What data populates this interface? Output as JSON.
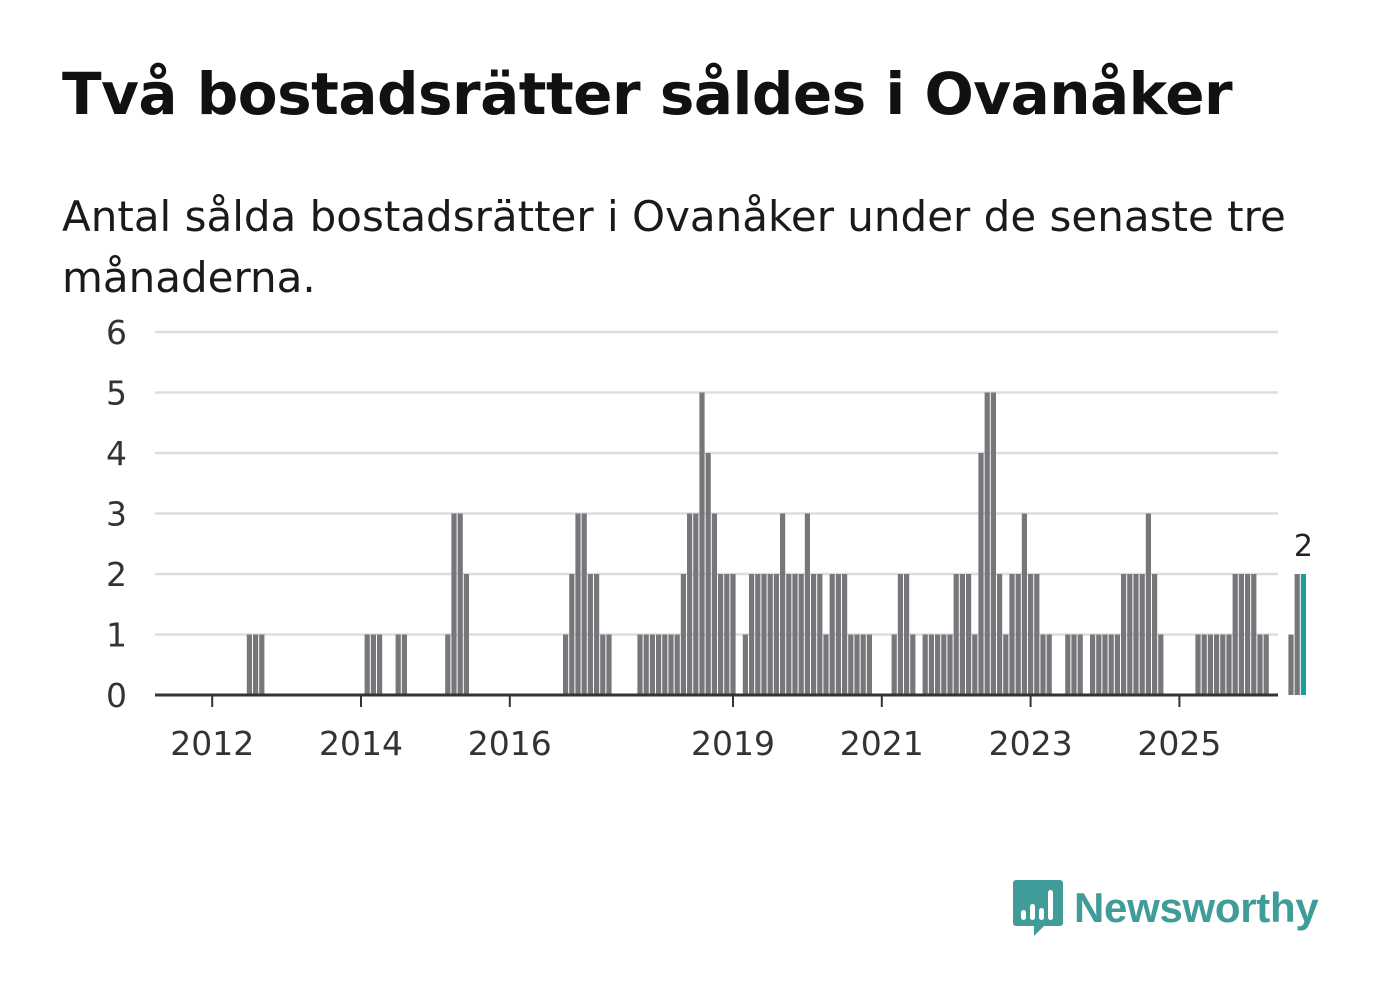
{
  "title": "Två bostadsrätter såldes i Ovanåker",
  "subtitle": "Antal sålda bostadsrätter i Ovanåker under de senaste tre månaderna.",
  "brand": {
    "name": "Newsworthy",
    "color": "#3f9c98",
    "icon": "bar-chart-speech-bubble-icon"
  },
  "colors": {
    "bar": "#77767b",
    "highlight": "#1a9d9c",
    "grid": "#dddddd",
    "axis": "#333333"
  },
  "chart_data": {
    "type": "bar",
    "title": "Två bostadsrätter såldes i Ovanåker",
    "xlabel": "",
    "ylabel": "",
    "ylim": [
      0,
      6
    ],
    "yticks": [
      "0",
      "1",
      "2",
      "3",
      "4",
      "5",
      "6"
    ],
    "xticks": [
      {
        "label": "2012",
        "index": 3
      },
      {
        "label": "2014",
        "index": 27
      },
      {
        "label": "2016",
        "index": 51
      },
      {
        "label": "2019",
        "index": 87
      },
      {
        "label": "2021",
        "index": 111
      },
      {
        "label": "2023",
        "index": 135
      },
      {
        "label": "2025",
        "index": 159
      }
    ],
    "start_period": "2011-09",
    "period": "3 months (rolling, monthly steps)",
    "values": [
      0,
      0,
      0,
      0,
      0,
      0,
      0,
      0,
      0,
      1,
      1,
      1,
      0,
      0,
      0,
      0,
      0,
      0,
      0,
      0,
      0,
      0,
      0,
      0,
      0,
      0,
      0,
      0,
      1,
      1,
      1,
      0,
      0,
      1,
      1,
      0,
      0,
      0,
      0,
      0,
      0,
      1,
      3,
      3,
      2,
      0,
      0,
      0,
      0,
      0,
      0,
      0,
      0,
      0,
      0,
      0,
      0,
      0,
      0,
      0,
      1,
      2,
      3,
      3,
      2,
      2,
      1,
      1,
      0,
      0,
      0,
      0,
      1,
      1,
      1,
      1,
      1,
      1,
      1,
      2,
      3,
      3,
      5,
      4,
      3,
      2,
      2,
      2,
      0,
      1,
      2,
      2,
      2,
      2,
      2,
      3,
      2,
      2,
      2,
      3,
      2,
      2,
      1,
      2,
      2,
      2,
      1,
      1,
      1,
      1,
      0,
      0,
      0,
      1,
      2,
      2,
      1,
      0,
      1,
      1,
      1,
      1,
      1,
      2,
      2,
      2,
      1,
      4,
      5,
      5,
      2,
      1,
      2,
      2,
      3,
      2,
      2,
      1,
      1,
      0,
      0,
      1,
      1,
      1,
      0,
      1,
      1,
      1,
      1,
      1,
      2,
      2,
      2,
      2,
      3,
      2,
      1,
      0,
      0,
      0,
      0,
      0,
      1,
      1,
      1,
      1,
      1,
      1,
      2,
      2,
      2,
      2,
      1,
      1,
      0,
      0,
      0,
      1,
      2,
      2
    ],
    "last_value_label": "2"
  }
}
